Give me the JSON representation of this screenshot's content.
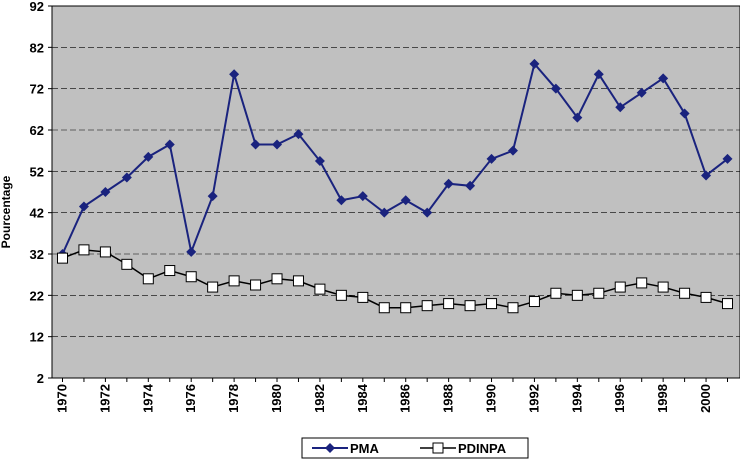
{
  "chart_data": {
    "type": "line",
    "title": "",
    "xlabel": "",
    "ylabel": "Pourcentage",
    "ylim": [
      2,
      92
    ],
    "yticks": [
      2,
      12,
      22,
      32,
      42,
      52,
      62,
      72,
      82,
      92
    ],
    "xlim": [
      1970,
      2001
    ],
    "xticks": [
      1970,
      1972,
      1974,
      1976,
      1978,
      1980,
      1982,
      1984,
      1986,
      1988,
      1990,
      1992,
      1994,
      1996,
      1998,
      2000
    ],
    "grid": true,
    "legend_position": "bottom",
    "x": [
      1970,
      1971,
      1972,
      1973,
      1974,
      1975,
      1976,
      1977,
      1978,
      1979,
      1980,
      1981,
      1982,
      1983,
      1984,
      1985,
      1986,
      1987,
      1988,
      1989,
      1990,
      1991,
      1992,
      1993,
      1994,
      1995,
      1996,
      1997,
      1998,
      1999,
      2000,
      2001
    ],
    "series": [
      {
        "name": "PMA",
        "color": "#1a237e",
        "marker": "diamond",
        "values": [
          32,
          43.5,
          47,
          50.5,
          55.5,
          58.5,
          32.5,
          46,
          75.5,
          58.5,
          58.5,
          61,
          54.5,
          45,
          46,
          42,
          45,
          42,
          49,
          48.5,
          55,
          57,
          78,
          72,
          65,
          75.5,
          67.5,
          71,
          74.5,
          66,
          51,
          55
        ]
      },
      {
        "name": "PDINPA",
        "color": "#000000",
        "marker": "square-open",
        "values": [
          31,
          33,
          32.5,
          29.5,
          26,
          28,
          26.5,
          24,
          25.5,
          24.5,
          26,
          25.5,
          23.5,
          22,
          21.5,
          19,
          19,
          19.5,
          20,
          19.5,
          20,
          19,
          20.5,
          22.5,
          22,
          22.5,
          24,
          25,
          24,
          22.5,
          21.5,
          20
        ]
      }
    ]
  }
}
